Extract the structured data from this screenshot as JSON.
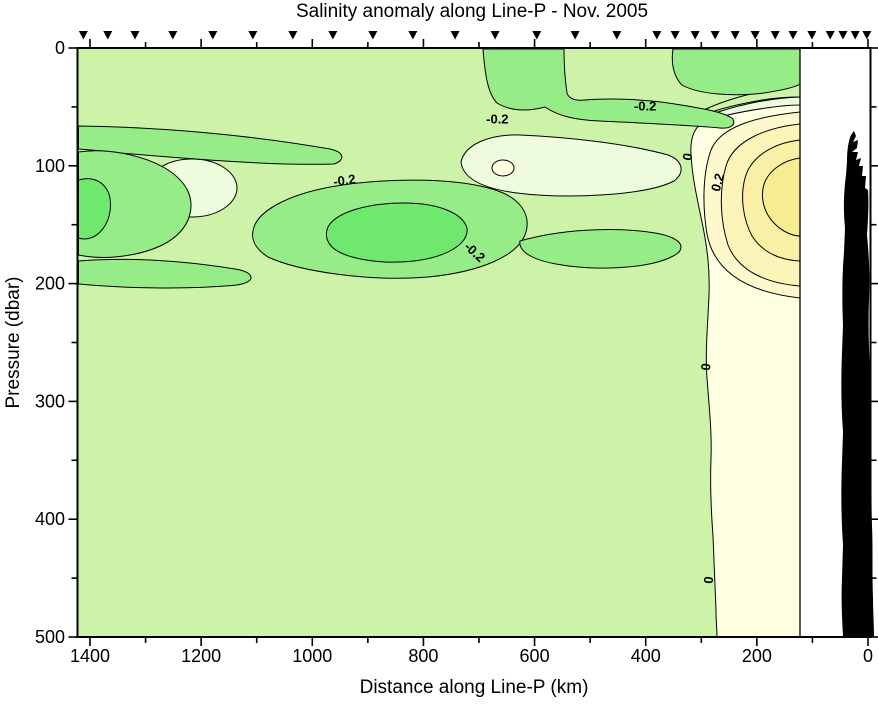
{
  "title": "Salinity anomaly along Line-P - Nov. 2005",
  "axes": {
    "x": {
      "label": "Distance along Line-P (km)",
      "tick_labels": [
        "1400",
        "1200",
        "1000",
        "800",
        "600",
        "400",
        "200",
        "0"
      ],
      "tick_values_km": [
        1400,
        1200,
        1000,
        800,
        600,
        400,
        200,
        0
      ],
      "minor_tick_step_km": 100,
      "range_km": [
        1400,
        0
      ],
      "direction": "reversed"
    },
    "y": {
      "label": "Pressure (dbar)",
      "tick_labels": [
        "0",
        "100",
        "200",
        "300",
        "400",
        "500"
      ],
      "tick_values_dbar": [
        0,
        100,
        200,
        300,
        400,
        500
      ],
      "minor_tick_step_dbar": 50,
      "range_dbar": [
        0,
        500
      ],
      "direction": "increasing-downward"
    }
  },
  "stations": {
    "marker_symbol": "filled-down-triangle",
    "marker_color": "#000000",
    "positions_km": [
      1412,
      1368,
      1319,
      1251,
      1179,
      1107,
      1035,
      963,
      891,
      819,
      743,
      671,
      596,
      527,
      452,
      380,
      347,
      311,
      275,
      239,
      203,
      167,
      135,
      101,
      68,
      45,
      23,
      2
    ]
  },
  "chart_data": {
    "type": "heatmap",
    "subtype": "filled-contour-ocean-section",
    "title": "Salinity anomaly along Line-P - Nov. 2005",
    "xlabel": "Distance along Line-P (km)",
    "ylabel": "Pressure (dbar)",
    "x_range": [
      1400,
      0
    ],
    "ylim": [
      0,
      500
    ],
    "y_inverted": true,
    "grid": false,
    "legend": "none",
    "contour_interval": 0.1,
    "labeled_contour_values": [
      -0.2,
      0,
      0.2
    ],
    "fill_levels": [
      {
        "range": "below -0.3",
        "color": "#6ee96e"
      },
      {
        "range": "-0.3 to -0.2",
        "color": "#96ed87"
      },
      {
        "range": "-0.2 to -0.1",
        "color": "#cdf3a8"
      },
      {
        "range": "-0.1 to 0",
        "color": "#eefcdd"
      },
      {
        "range": "0 to 0.1",
        "color": "#ffffe2"
      },
      {
        "range": "0.1 to 0.2",
        "color": "#fdf9cd"
      },
      {
        "range": "0.2 to 0.3",
        "color": "#fbf4b8"
      },
      {
        "range": "above 0.3",
        "color": "#f9efa5"
      }
    ],
    "features": [
      {
        "name": "fresh core offshore",
        "value": -0.3,
        "km": 850,
        "dbar_range": [
          120,
          190
        ]
      },
      {
        "name": "fresh core at far offshore end",
        "value": -0.3,
        "km": 1400,
        "dbar_range": [
          110,
          200
        ]
      },
      {
        "name": "near-surface fresh band",
        "value": -0.2,
        "km_range": [
          250,
          700
        ],
        "dbar_range": [
          0,
          70
        ]
      },
      {
        "name": "fresh band across section",
        "value": -0.2,
        "km_range": [
          600,
          1420
        ],
        "dbar_range": [
          60,
          200
        ]
      },
      {
        "name": "salty coastal core",
        "value": 0.3,
        "km_range": [
          120,
          270
        ],
        "dbar_range": [
          60,
          180
        ]
      },
      {
        "name": "zero anomaly boundary",
        "value": 0.0,
        "km": 280,
        "dbar_range": [
          60,
          500
        ]
      },
      {
        "name": "background anomaly offshore",
        "value": -0.15,
        "km_range": [
          280,
          1420
        ],
        "dbar_range": [
          200,
          500
        ]
      }
    ],
    "contour_labels_placed": [
      {
        "text": "-0.2",
        "km": 941,
        "dbar": 116,
        "rot": -8
      },
      {
        "text": "-0.2",
        "km": 667,
        "dbar": 64,
        "rot": 0
      },
      {
        "text": "-0.2",
        "km": 401,
        "dbar": 53,
        "rot": 0
      },
      {
        "text": "-0.2",
        "km": 713,
        "dbar": 176,
        "rot": 42
      },
      {
        "text": "0",
        "km": 317,
        "dbar": 93,
        "rot": -80
      },
      {
        "text": "0.2",
        "km": 263,
        "dbar": 115,
        "rot": -75
      },
      {
        "text": "0",
        "km": 284,
        "dbar": 271,
        "rot": -85
      },
      {
        "text": "0",
        "km": 279,
        "dbar": 452,
        "rot": -85
      }
    ],
    "land_mask": {
      "description": "black seafloor / coastal bathymetry silhouette",
      "km_extent": [
        0,
        50
      ],
      "top_dbar": 74
    },
    "data_gap": {
      "description": "white unsampled strip between section end and coast",
      "km_extent": [
        50,
        122
      ]
    }
  },
  "colors": {
    "background": "#ffffff",
    "axis": "#000000",
    "contour_line": "#000000",
    "land": "#000000"
  }
}
